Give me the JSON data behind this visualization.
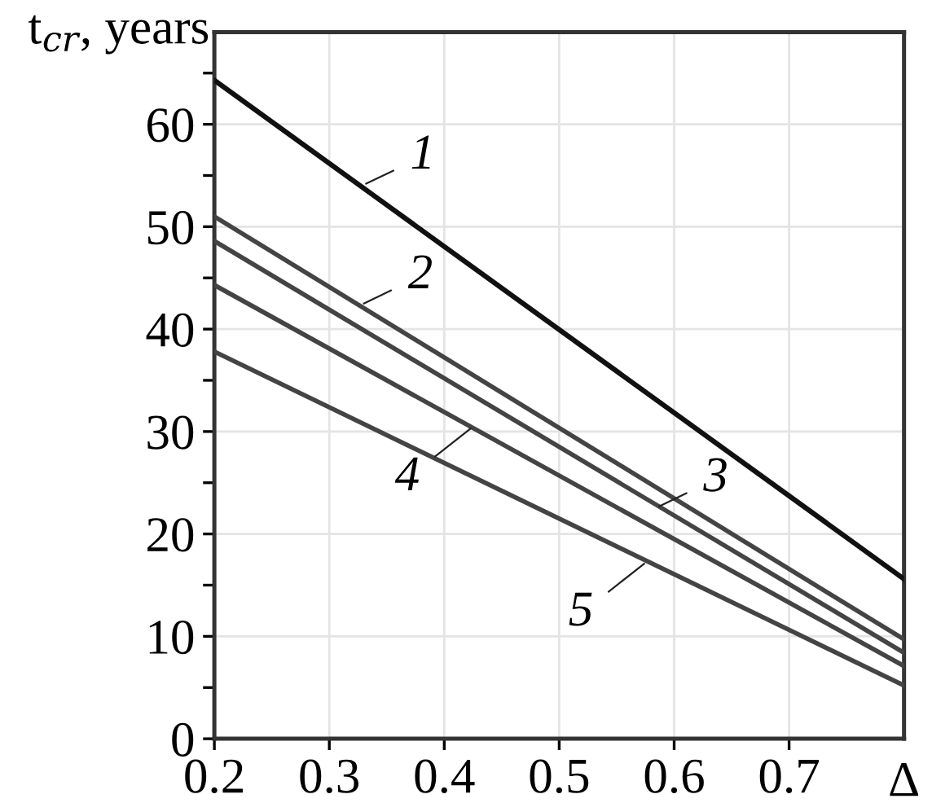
{
  "chart_data": {
    "type": "line",
    "ylabel": "t$_{cr}$, years",
    "xlabel": "Δ",
    "xlim": [
      0.2,
      0.8
    ],
    "ylim": [
      0,
      69
    ],
    "xticks": [
      0.2,
      0.3,
      0.4,
      0.5,
      0.6,
      0.7
    ],
    "yticks": [
      0,
      {
        "value": 5,
        "label": null
      },
      10,
      {
        "value": 15,
        "label": null
      },
      20,
      {
        "value": 25,
        "label": null
      },
      30,
      {
        "value": 35,
        "label": null
      },
      40,
      {
        "value": 45,
        "label": null
      },
      50,
      {
        "value": 55,
        "label": null
      },
      60,
      {
        "value": 65,
        "label": null
      }
    ],
    "grid": true,
    "marker": "none",
    "line_style": "solid",
    "x": [
      0.2,
      0.8
    ],
    "series": [
      {
        "color": "#111111",
        "values": [
          64.3,
          15.6
        ]
      },
      {
        "color": "#444444",
        "values": [
          51,
          9.7
        ]
      },
      {
        "color": "#444444",
        "values": [
          48.6,
          8.4
        ]
      },
      {
        "color": "#444444",
        "values": [
          44.3,
          7.1
        ]
      },
      {
        "color": "#444444",
        "values": [
          37.8,
          5.2
        ]
      }
    ],
    "annotations": [
      {
        "text": "1",
        "x": 0.332,
        "y": 54.2
      },
      {
        "text": "2",
        "x": 0.33,
        "y": 42.5
      },
      {
        "text": "3",
        "x": 0.587,
        "y": 22.7
      },
      {
        "text": "4",
        "x": 0.423,
        "y": 30.3
      },
      {
        "text": "5",
        "x": 0.574,
        "y": 17.1
      }
    ]
  }
}
